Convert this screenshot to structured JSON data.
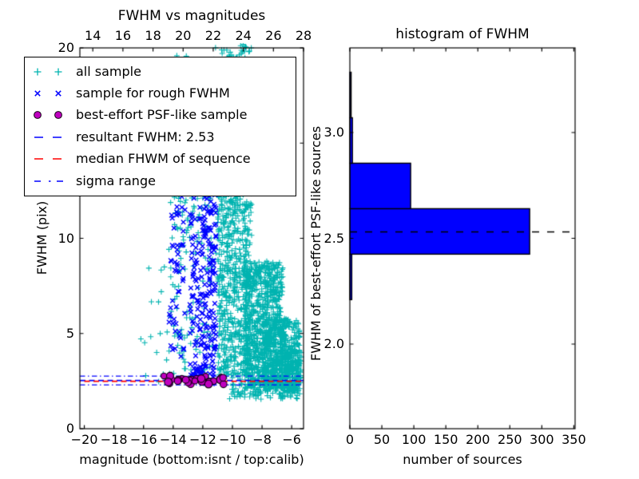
{
  "colors": {
    "background": "#ffffff",
    "axis": "#000000",
    "all_sample": "#00B3B0",
    "rough_fwhm_sample": "#0000FF",
    "psf_like_sample": "#BF00BF",
    "psf_like_edge": "#100010",
    "resultant_line": "#0000FF",
    "median_line": "#FF0000",
    "sigma_line": "#0000FF",
    "hist_bar": "#0000FF",
    "hist_bar_edge": "#000000",
    "hist_dashed_line": "#000000"
  },
  "chart_data": [
    {
      "type": "scatter",
      "title": "FWHM vs magnitudes",
      "xlabel": "magnitude (bottom:isnt / top:calib)",
      "ylabel": "FWHM (pix)",
      "xlim": [
        -20.3,
        -5.2
      ],
      "xlim_top": [
        13.14,
        28.0
      ],
      "ylim": [
        0,
        20
      ],
      "x_ticks_bottom": [
        -20,
        -18,
        -16,
        -14,
        -12,
        -10,
        -8,
        -6
      ],
      "x_ticks_top": [
        14,
        16,
        18,
        20,
        22,
        24,
        26,
        28
      ],
      "y_ticks": [
        0,
        5,
        10,
        15,
        20
      ],
      "grid": false,
      "seed": 20,
      "cluster_format": "[x_min, x_max, y_min, y_max, n_points]",
      "series": [
        {
          "name": "all sample",
          "marker": "plus",
          "color": "#00B3B0",
          "clusters": [
            [
              -11.0,
              -8.7,
              2.6,
              12.8,
              620
            ],
            [
              -10.25,
              -9.1,
              12.5,
              20.15,
              150
            ],
            [
              -10.75,
              -9.8,
              9.5,
              16.5,
              80
            ],
            [
              -9.2,
              -6.6,
              2.1,
              8.8,
              850
            ],
            [
              -8.0,
              -5.45,
              1.95,
              5.8,
              500
            ],
            [
              -6.5,
              -5.35,
              2.0,
              4.2,
              150
            ],
            [
              -14.3,
              -12.9,
              2.8,
              19.8,
              120
            ],
            [
              -12.9,
              -11.0,
              2.9,
              15.5,
              100
            ],
            [
              -16.5,
              -14.35,
              2.4,
              8.6,
              16
            ],
            [
              -10.2,
              -5.4,
              1.55,
              2.45,
              120
            ],
            [
              -11.3,
              -8.7,
              18.8,
              20.2,
              22
            ]
          ]
        },
        {
          "name": "sample for rough FWHM",
          "marker": "x",
          "color": "#0000FF",
          "clusters": [
            [
              -14.3,
              -13.2,
              2.6,
              12.3,
              55
            ],
            [
              -12.9,
              -11.8,
              2.7,
              13.3,
              100
            ],
            [
              -11.9,
              -11.1,
              3.4,
              13.2,
              120
            ],
            [
              -12.75,
              -11.2,
              2.35,
              3.3,
              35
            ],
            [
              -13.4,
              -11.3,
              13.0,
              19.5,
              12
            ]
          ]
        },
        {
          "name": "best-effort PSF-like sample",
          "marker": "circle",
          "color": "#BF00BF",
          "edge_color": "#100010",
          "clusters": [
            [
              -14.7,
              -10.6,
              2.3,
              2.78,
              30
            ]
          ]
        }
      ],
      "hlines": [
        {
          "label": "resultant FWHM: 2.53",
          "y": 2.53,
          "color": "#0000FF",
          "style": "dashed"
        },
        {
          "label": "median FHWM of sequence",
          "y": 2.49,
          "color": "#FF0000",
          "style": "dashed"
        },
        {
          "label": "sigma range upper",
          "y": 2.76,
          "color": "#0000FF",
          "style": "dashdot"
        },
        {
          "label": "sigma range lower",
          "y": 2.3,
          "color": "#0000FF",
          "style": "dashdot"
        }
      ],
      "legend": {
        "position": "upper left",
        "items": [
          {
            "label": "all sample"
          },
          {
            "label": "sample for rough FWHM"
          },
          {
            "label": "best-effort PSF-like sample"
          },
          {
            "label": "resultant FWHM: 2.53"
          },
          {
            "label": "median FHWM of sequence"
          },
          {
            "label": "sigma range"
          }
        ]
      }
    },
    {
      "type": "bar-horizontal",
      "title": "histogram of FWHM",
      "xlabel": "number of sources",
      "ylabel": "FWHM of best-effort PSF-like sources",
      "xlim": [
        0,
        352
      ],
      "ylim": [
        1.6,
        3.4
      ],
      "x_ticks": [
        0,
        50,
        100,
        150,
        200,
        250,
        300,
        350
      ],
      "y_ticks": [
        2.0,
        2.5,
        3.0
      ],
      "bar_color": "#0000FF",
      "bar_edge_color": "#000000",
      "bin_edges": [
        2.21,
        2.425,
        2.64,
        2.855,
        3.07,
        3.285
      ],
      "counts": [
        3,
        281,
        95,
        4,
        2
      ],
      "dashed_line": {
        "y": 2.53,
        "color": "#000000",
        "style": "dashed"
      }
    }
  ]
}
